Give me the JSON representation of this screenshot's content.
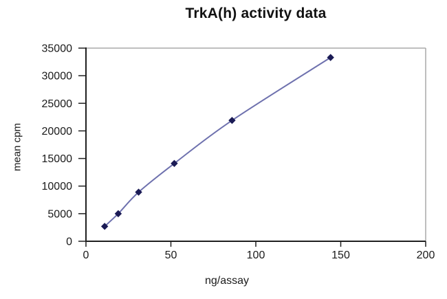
{
  "chart_data": {
    "type": "line",
    "title": "TrkA(h) activity data",
    "xlabel": "ng/assay",
    "ylabel": "mean cpm",
    "xlim": [
      0,
      200
    ],
    "ylim": [
      0,
      35000
    ],
    "x_ticks": [
      0,
      50,
      100,
      150,
      200
    ],
    "y_ticks": [
      0,
      5000,
      10000,
      15000,
      20000,
      25000,
      30000,
      35000
    ],
    "grid": false,
    "legend": "none",
    "line_smoothed": true,
    "series": [
      {
        "x": [
          11,
          19,
          31,
          52,
          86,
          144
        ],
        "y": [
          2700,
          5000,
          8900,
          14100,
          21900,
          33300
        ],
        "marker": "diamond",
        "line_color": "#6e71ae",
        "marker_color": "#1b1b55"
      }
    ]
  },
  "colors": {
    "axis": "#1f1f1f",
    "plot_border": "#a8a8a8",
    "tick_text": "#1a1a1a",
    "background": "#ffffff"
  }
}
